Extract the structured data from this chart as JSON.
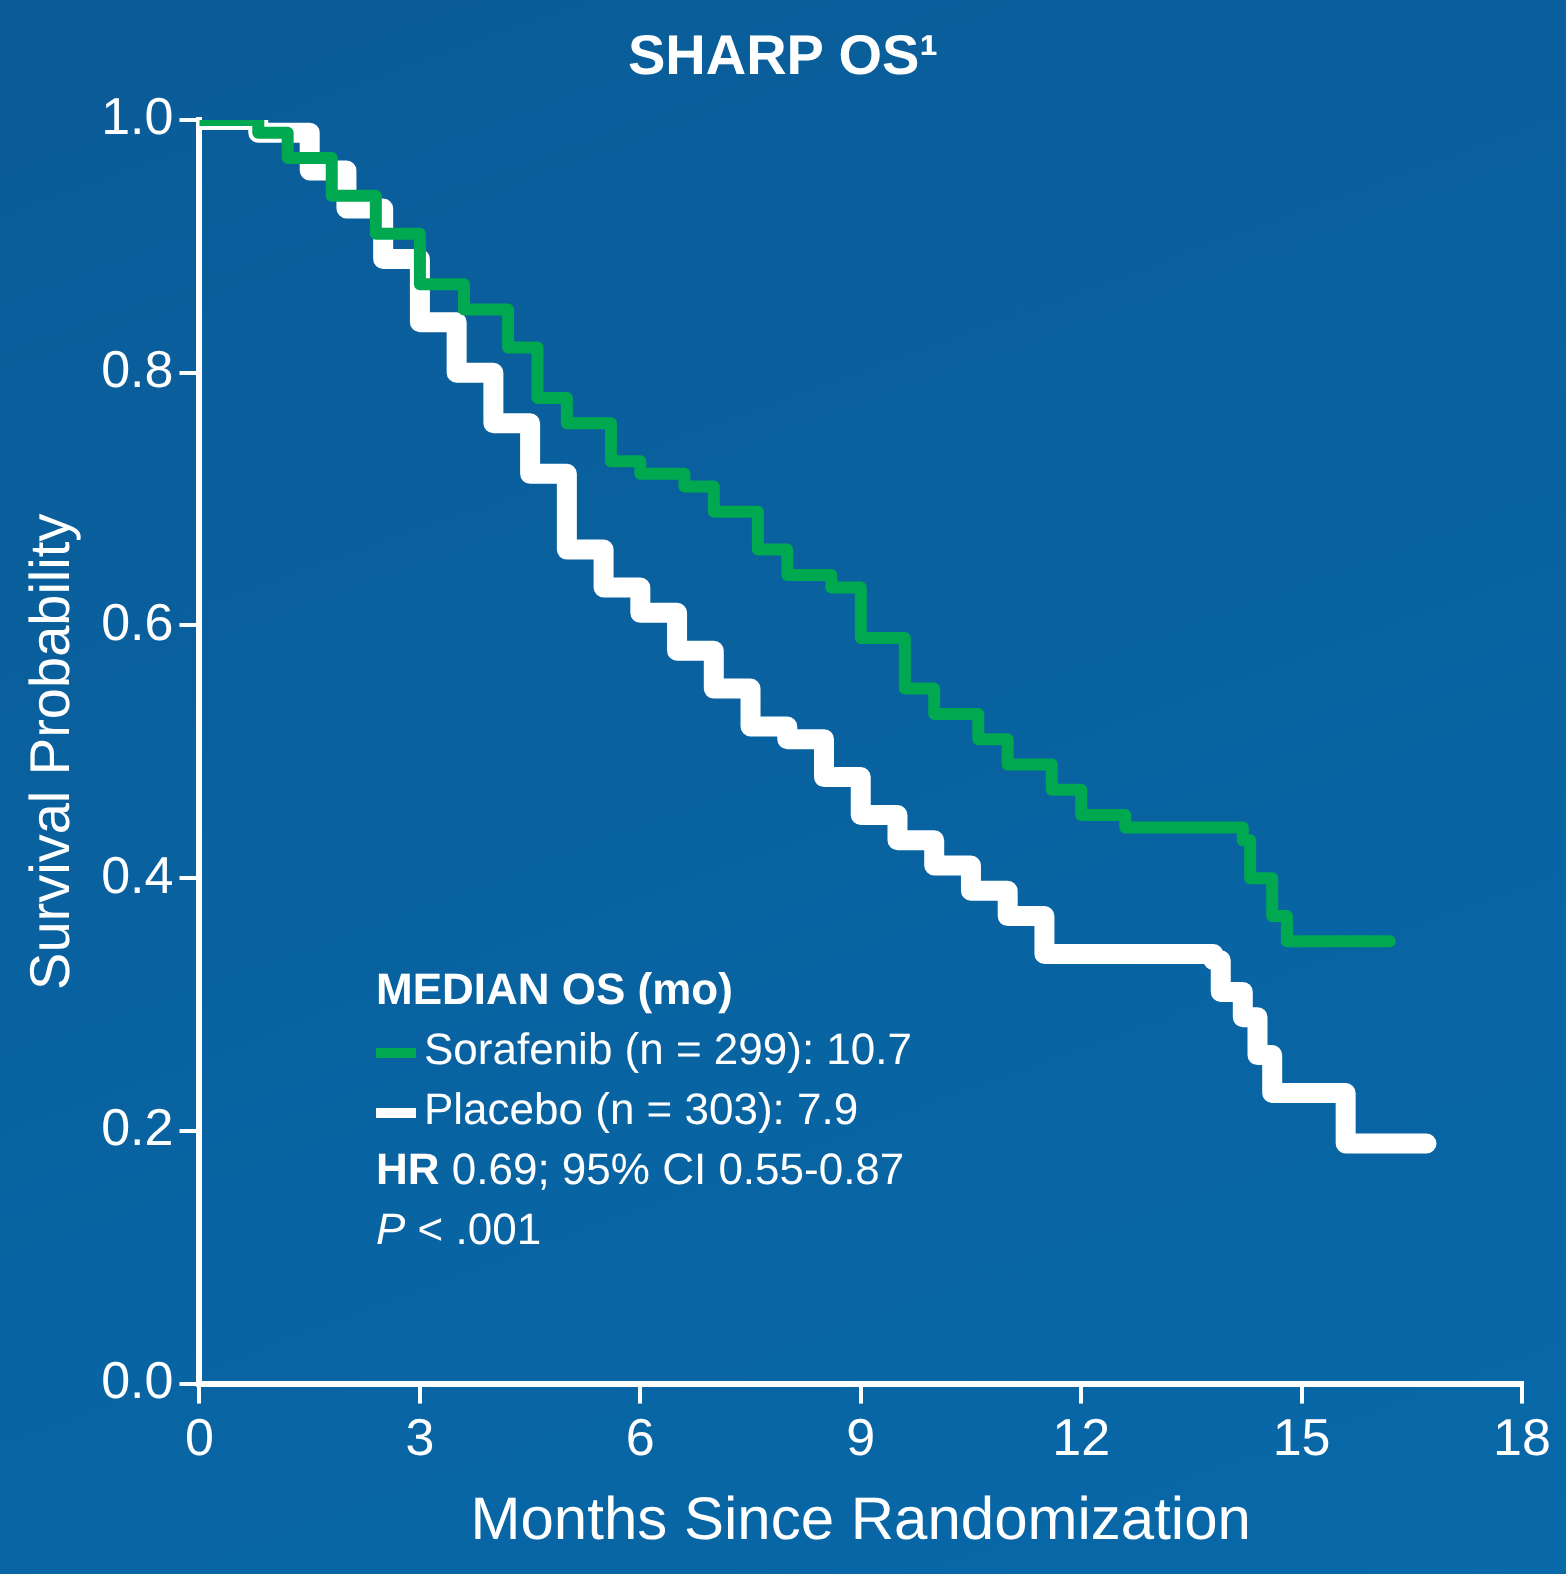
{
  "chart_data": {
    "type": "step",
    "title": "SHARP OS¹",
    "xlabel": "Months Since Randomization",
    "ylabel": "Survival Probability",
    "legend_title": "MEDIAN OS (mo)",
    "legend": "bottom left",
    "grid": false,
    "xlim": [
      0,
      18
    ],
    "xticks": [
      0,
      3,
      6,
      9,
      12,
      15,
      18
    ],
    "ylim": [
      0,
      1
    ],
    "yticks": [
      {
        "value": 0,
        "label": "0.0"
      },
      {
        "value": 0.2,
        "label": "0.2"
      },
      {
        "value": 0.4,
        "label": "0.4"
      },
      {
        "value": 0.6,
        "label": "0.6"
      },
      {
        "value": 0.8,
        "label": "0.8"
      },
      {
        "value": 1,
        "label": "1.0"
      }
    ],
    "series": [
      {
        "name": "Sorafenib (n = 299): 10.7",
        "color": "#00a850",
        "x": [
          0,
          0.8,
          1.2,
          1.8,
          2.4,
          3,
          3.6,
          4.2,
          4.6,
          5,
          5.6,
          6,
          6.6,
          7,
          7.6,
          8,
          8.6,
          9,
          9.6,
          10,
          10.6,
          11,
          11.6,
          12,
          12.6,
          14.2,
          14.3,
          14.6,
          14.8,
          16.2
        ],
        "values": [
          1,
          0.99,
          0.97,
          0.94,
          0.91,
          0.87,
          0.85,
          0.82,
          0.78,
          0.76,
          0.73,
          0.72,
          0.71,
          0.69,
          0.66,
          0.64,
          0.63,
          0.59,
          0.55,
          0.53,
          0.51,
          0.49,
          0.47,
          0.45,
          0.44,
          0.43,
          0.4,
          0.37,
          0.35,
          0.35
        ]
      },
      {
        "name": "Placebo (n = 303): 7.9",
        "color": "#ffffff",
        "x": [
          0,
          0.8,
          1.5,
          2,
          2.5,
          3,
          3.5,
          4,
          4.5,
          5,
          5.5,
          6,
          6.5,
          7,
          7.5,
          8,
          8.5,
          9,
          9.5,
          10,
          10.5,
          11,
          11.5,
          13.8,
          13.9,
          14.2,
          14.4,
          14.6,
          15.5,
          15.6,
          16.7
        ],
        "values": [
          1,
          0.99,
          0.96,
          0.93,
          0.89,
          0.84,
          0.8,
          0.76,
          0.72,
          0.66,
          0.63,
          0.61,
          0.58,
          0.55,
          0.52,
          0.51,
          0.48,
          0.45,
          0.43,
          0.41,
          0.39,
          0.37,
          0.34,
          0.335,
          0.31,
          0.29,
          0.26,
          0.23,
          0.23,
          0.19,
          0.19
        ]
      }
    ],
    "annotations": [
      "HR 0.69; 95% CI 0.55-0.87",
      "P < .001"
    ]
  }
}
